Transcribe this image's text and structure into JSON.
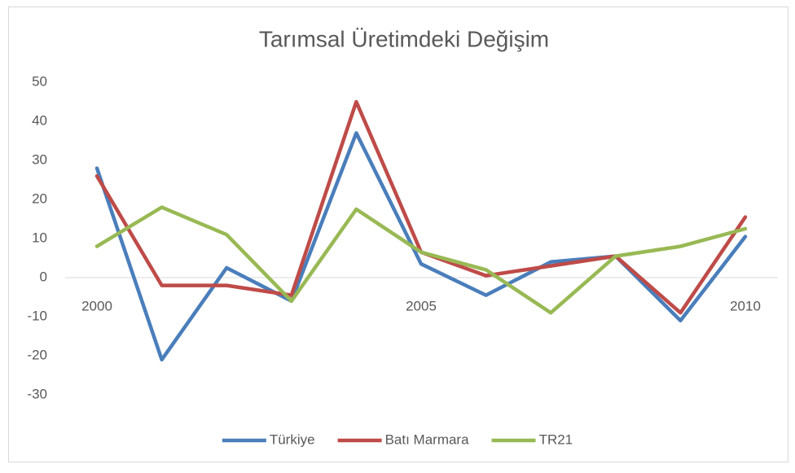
{
  "chart_data": {
    "type": "line",
    "title": "Tarımsal Üretimdeki Değişim",
    "categories": [
      "2000",
      null,
      null,
      null,
      null,
      "2005",
      null,
      null,
      null,
      null,
      "2010"
    ],
    "series": [
      {
        "name": "Türkiye",
        "color": "#4a7ebb",
        "values": [
          28,
          -21,
          2.5,
          -6,
          37,
          3.5,
          -4.5,
          4,
          5.5,
          -11,
          10.5
        ]
      },
      {
        "name": "Batı Marmara",
        "color": "#be4b48",
        "values": [
          26,
          -2,
          -2,
          -4.5,
          45,
          6.5,
          0.5,
          3,
          5.5,
          -9,
          15.5
        ]
      },
      {
        "name": "TR21",
        "color": "#98b954",
        "values": [
          8,
          18,
          11,
          -6,
          17.5,
          6.5,
          2,
          -9,
          5.5,
          8,
          12.5
        ]
      }
    ],
    "ylim": [
      -30,
      50
    ],
    "yticks": [
      -30,
      -20,
      -10,
      0,
      10,
      20,
      30,
      40,
      50
    ],
    "grid": false,
    "legend": "bottom"
  }
}
